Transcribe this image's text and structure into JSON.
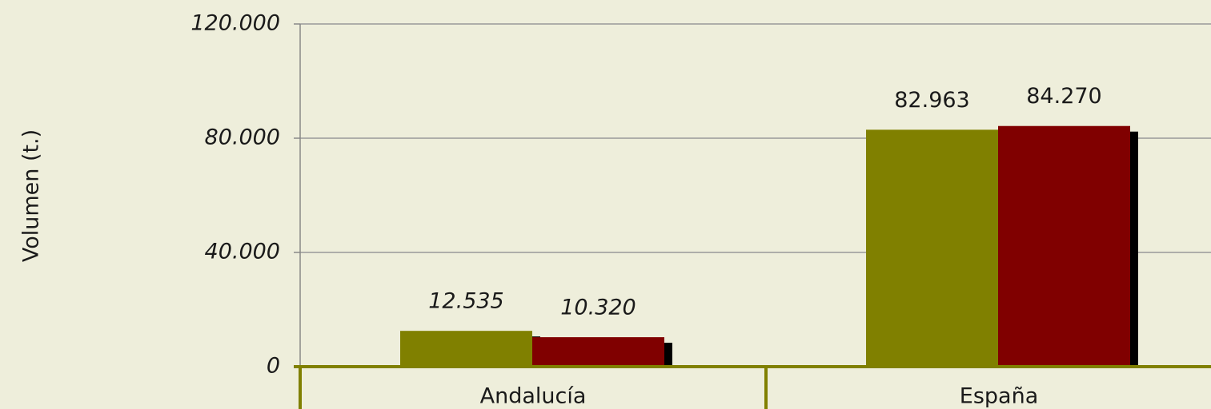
{
  "chart_data": {
    "type": "bar",
    "y_axis_label": "Volumen (t.)",
    "categories": [
      "Andalucía",
      "España"
    ],
    "series": [
      {
        "color": "#808000",
        "values": [
          12535,
          82963
        ],
        "value_labels": [
          "12.535",
          "82.963"
        ]
      },
      {
        "color": "#800000",
        "values": [
          10320,
          84270
        ],
        "value_labels": [
          "10.320",
          "84.270"
        ]
      }
    ],
    "ylim": [
      0,
      120000
    ],
    "yticks": [
      0,
      {
        "value": 40000,
        "label": "40.000"
      },
      {
        "value": 80000,
        "label": "80.000"
      },
      {
        "value": 120000,
        "label": "120.000"
      }
    ],
    "grid": true,
    "shadow_color": "#000000",
    "axis_color": "#808000"
  }
}
